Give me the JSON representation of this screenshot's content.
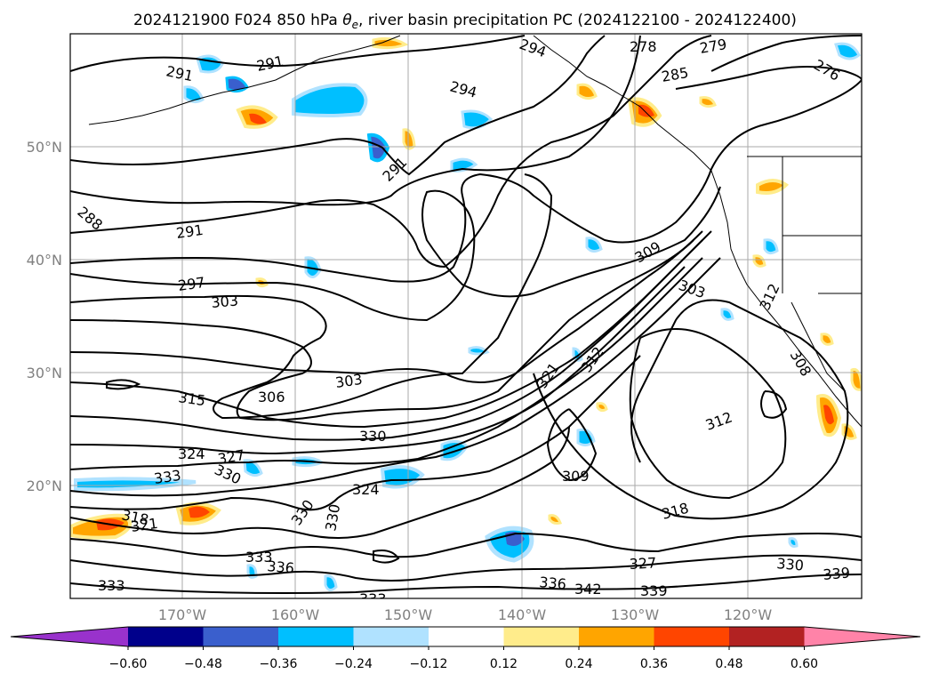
{
  "title_prefix": "2024121900 F024 850 hPa ",
  "title_symbol": "θ",
  "title_subscript": "e",
  "title_suffix": ", river basin precipitation PC (2024122100 - 2024122400)",
  "lat_labels": [
    "50°N",
    "40°N",
    "30°N",
    "20°N"
  ],
  "lon_labels": [
    "170°W",
    "160°W",
    "150°W",
    "140°W",
    "130°W",
    "120°W"
  ],
  "colorbar": {
    "ticks": [
      "−0.60",
      "−0.48",
      "−0.36",
      "−0.24",
      "−0.12",
      "0.12",
      "0.24",
      "0.36",
      "0.48",
      "0.60"
    ],
    "colors": [
      "#9932cc",
      "#00008b",
      "#3a5fcd",
      "#00bfff",
      "#b0e2ff",
      "#ffffff",
      "#ffec8b",
      "#ffa500",
      "#ff4500",
      "#b22222",
      "#ff83a8"
    ]
  },
  "contour_labels": [
    "291",
    "291",
    "294",
    "294",
    "279",
    "276",
    "285",
    "291",
    "288",
    "291",
    "297",
    "303",
    "303",
    "309",
    "312",
    "306",
    "315",
    "303",
    "321",
    "312",
    "324",
    "327",
    "330",
    "330",
    "309",
    "312",
    "318",
    "333",
    "318",
    "321",
    "324",
    "330",
    "333",
    "336",
    "333",
    "336",
    "342",
    "327",
    "339",
    "330",
    "339",
    "308",
    "278"
  ],
  "precip_colors": {
    "neg_light": "#b0e2ff",
    "neg_mid": "#00bfff",
    "neg_dark": "#3a5fcd",
    "neg_deep": "#00008b",
    "pos_light": "#ffec8b",
    "pos_mid": "#ffa500",
    "pos_dark": "#ff4500"
  }
}
